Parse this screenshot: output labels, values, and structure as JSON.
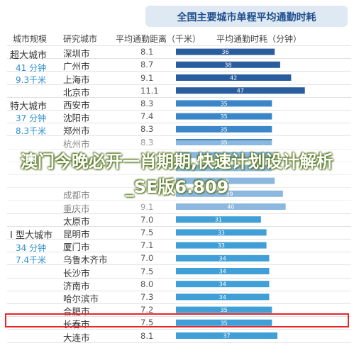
{
  "header": {
    "title": "全国主要城市单程平均通勤时耗"
  },
  "columns": {
    "tier": "城市规模",
    "city": "研究城市",
    "distance": "平均通勤距离（千米）",
    "time": "平均通勤时耗（分钟）"
  },
  "tiers": [
    {
      "name": "超大城市",
      "minutes": "41 分钟",
      "km": "9.3千米"
    },
    {
      "name": "特大城市",
      "minutes": "37 分钟",
      "km": "8.3千米"
    },
    {
      "name": "Ⅰ 型大城市",
      "minutes": "34 分钟",
      "km": "7.4千米"
    }
  ],
  "overlay": {
    "text": "澳门今晚必开一肖期期,快速计划设计解析_SE版6.809"
  },
  "colors": {
    "super_large": "#2a5d9e",
    "extra_large": "#3a86c8",
    "type_one": "#3f9fd6",
    "highlight": "#e8252a"
  },
  "chart_data": {
    "type": "bar",
    "orientation": "horizontal",
    "title": "全国主要城市单程平均通勤时耗",
    "xlim": [
      0,
      50
    ],
    "rows": [
      {
        "city": "深圳市",
        "distance": "8.1",
        "time": 36,
        "tier": "super_large"
      },
      {
        "city": "广州市",
        "distance": "8.7",
        "time": 38,
        "tier": "super_large"
      },
      {
        "city": "上海市",
        "distance": "9.1",
        "time": 42,
        "tier": "super_large"
      },
      {
        "city": "北京市",
        "distance": "11.1",
        "time": 47,
        "tier": "super_large"
      },
      {
        "city": "西安市",
        "distance": "8.3",
        "time": 35,
        "tier": "extra_large"
      },
      {
        "city": "沈阳市",
        "distance": "7.4",
        "time": 35,
        "tier": "extra_large"
      },
      {
        "city": "郑州市",
        "distance": "8.3",
        "time": 35,
        "tier": "extra_large"
      },
      {
        "city": "杭州市",
        "distance": "8.3",
        "time": 35,
        "tier": "extra_large"
      },
      {
        "city": "",
        "distance": "",
        "time": 35,
        "tier": "extra_large"
      },
      {
        "city": "",
        "distance": "",
        "time": 35,
        "tier": "extra_large"
      },
      {
        "city": "",
        "distance": "",
        "time": 36,
        "tier": "extra_large"
      },
      {
        "city": "成都市",
        "distance": "",
        "time": 39,
        "tier": "extra_large"
      },
      {
        "city": "重庆市",
        "distance": "9.1",
        "time": 40,
        "tier": "extra_large"
      },
      {
        "city": "太原市",
        "distance": "7.0",
        "time": 31,
        "tier": "type_one"
      },
      {
        "city": "昆明市",
        "distance": "7.5",
        "time": 33,
        "tier": "type_one"
      },
      {
        "city": "厦门市",
        "distance": "7.1",
        "time": 33,
        "tier": "type_one"
      },
      {
        "city": "乌鲁木齐市",
        "distance": "7.0",
        "time": 34,
        "tier": "type_one"
      },
      {
        "city": "长沙市",
        "distance": "7.5",
        "time": 34,
        "tier": "type_one"
      },
      {
        "city": "济南市",
        "distance": "8.0",
        "time": 34,
        "tier": "type_one"
      },
      {
        "city": "哈尔滨市",
        "distance": "7.3",
        "time": 34,
        "tier": "type_one"
      },
      {
        "city": "合肥市",
        "distance": "7.2",
        "time": 35,
        "tier": "type_one"
      },
      {
        "city": "长春市",
        "distance": "7.5",
        "time": 35,
        "tier": "type_one"
      },
      {
        "city": "大连市",
        "distance": "8.1",
        "time": 37,
        "tier": "type_one"
      }
    ],
    "highlighted_city": "合肥市"
  }
}
